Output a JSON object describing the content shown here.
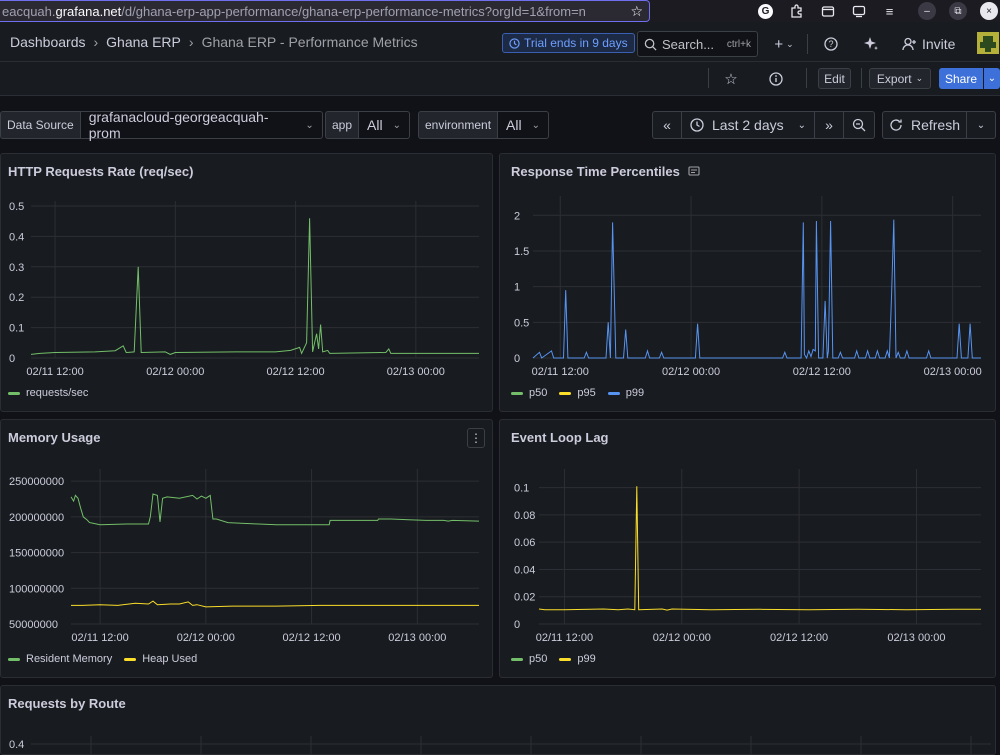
{
  "browser": {
    "url_prefix": "eacquah.",
    "url_domain": "grafana.net",
    "url_rest": "/d/ghana-erp-app-performance/ghana-erp-performance-metrics?orgId=1&from=n",
    "window_controls": [
      "–",
      "⧉",
      "×"
    ]
  },
  "topnav": {
    "breadcrumbs": [
      "Dashboards",
      "Ghana ERP",
      "Ghana ERP - Performance Metrics"
    ],
    "trial": "Trial ends in 9 days",
    "search_placeholder": "Search...",
    "search_shortcut": "ctrl+k",
    "invite": "Invite"
  },
  "toolbar": {
    "edit": "Edit",
    "export": "Export",
    "share": "Share"
  },
  "variables": [
    {
      "label": "Data Source",
      "value": "grafanacloud-georgeacquah-prom"
    },
    {
      "label": "app",
      "value": "All"
    },
    {
      "label": "environment",
      "value": "All"
    }
  ],
  "time": {
    "range": "Last 2 days",
    "refresh": "Refresh"
  },
  "colors": {
    "green": "#73bf69",
    "yellow": "#fade2a",
    "blue": "#5794f2"
  },
  "panels": {
    "http": {
      "title": "HTTP Requests Rate (req/sec)"
    },
    "resp": {
      "title": "Response Time Percentiles"
    },
    "mem": {
      "title": "Memory Usage"
    },
    "lag": {
      "title": "Event Loop Lag"
    },
    "routes": {
      "title": "Requests by Route"
    }
  },
  "chart_data": [
    {
      "type": "line",
      "title": "HTTP Requests Rate (req/sec)",
      "x_ticks": [
        "02/11 12:00",
        "02/12 00:00",
        "02/12 12:00",
        "02/13 00:00"
      ],
      "y_ticks": [
        "0",
        "0.1",
        "0.2",
        "0.3",
        "0.4",
        "0.5"
      ],
      "ylim": [
        0,
        0.5
      ],
      "xlim": [
        -2.4,
        42.3
      ],
      "series": [
        {
          "name": "requests/sec",
          "color": "#73bf69",
          "points": [
            [
              -2.4,
              0.012
            ],
            [
              -1.5,
              0.015
            ],
            [
              0,
              0.018
            ],
            [
              4,
              0.02
            ],
            [
              6,
              0.024
            ],
            [
              6.8,
              0.04
            ],
            [
              7.1,
              0.018
            ],
            [
              7.9,
              0.02
            ],
            [
              8.3,
              0.3
            ],
            [
              8.6,
              0.018
            ],
            [
              11,
              0.02
            ],
            [
              11.5,
              0.012
            ],
            [
              12,
              0.018
            ],
            [
              18,
              0.02
            ],
            [
              22,
              0.02
            ],
            [
              23.5,
              0.025
            ],
            [
              24.4,
              0.035
            ],
            [
              24.6,
              0.015
            ],
            [
              25.1,
              0.05
            ],
            [
              25.4,
              0.46
            ],
            [
              25.7,
              0.02
            ],
            [
              26.1,
              0.08
            ],
            [
              26.3,
              0.03
            ],
            [
              26.5,
              0.11
            ],
            [
              26.7,
              0.02
            ],
            [
              27.2,
              0.025
            ],
            [
              27.4,
              0.015
            ],
            [
              33,
              0.018
            ],
            [
              33.3,
              0.03
            ],
            [
              33.5,
              0.015
            ],
            [
              42.3,
              0.015
            ]
          ]
        }
      ]
    },
    {
      "type": "line",
      "title": "Response Time Percentiles",
      "x_ticks": [
        "02/11 12:00",
        "02/12 00:00",
        "02/12 12:00",
        "02/13 00:00"
      ],
      "y_ticks": [
        "0",
        "0.5",
        "1",
        "1.5",
        "2"
      ],
      "ylim": [
        0,
        2.2
      ],
      "xlim": [
        -2.5,
        38.6
      ],
      "series": [
        {
          "name": "p50",
          "color": "#73bf69",
          "points": []
        },
        {
          "name": "p95",
          "color": "#fade2a",
          "points": []
        },
        {
          "name": "p99",
          "color": "#5794f2",
          "points": [
            [
              -2.5,
              0
            ],
            [
              -1.9,
              0.08
            ],
            [
              -1.7,
              0
            ],
            [
              -0.8,
              0.1
            ],
            [
              -0.6,
              0
            ],
            [
              0.3,
              0
            ],
            [
              0.5,
              0.95
            ],
            [
              0.7,
              0
            ],
            [
              2.2,
              0
            ],
            [
              2.4,
              0.08
            ],
            [
              2.6,
              0
            ],
            [
              4.2,
              0
            ],
            [
              4.4,
              0.5
            ],
            [
              4.6,
              0
            ],
            [
              4.8,
              1.9
            ],
            [
              5.1,
              0
            ],
            [
              5.8,
              0
            ],
            [
              6,
              0.4
            ],
            [
              6.2,
              0
            ],
            [
              7.8,
              0
            ],
            [
              8,
              0.1
            ],
            [
              8.2,
              0
            ],
            [
              9.1,
              0
            ],
            [
              9.3,
              0.08
            ],
            [
              9.5,
              0
            ],
            [
              12.4,
              0
            ],
            [
              12.6,
              0.48
            ],
            [
              12.8,
              0
            ],
            [
              20.4,
              0
            ],
            [
              20.6,
              0.08
            ],
            [
              20.8,
              0
            ],
            [
              22.1,
              0
            ],
            [
              22.3,
              1.9
            ],
            [
              22.4,
              0.05
            ],
            [
              22.6,
              0
            ],
            [
              22.8,
              0.1
            ],
            [
              23,
              0.02
            ],
            [
              23.2,
              0.12
            ],
            [
              23.4,
              0.1
            ],
            [
              23.5,
              1.92
            ],
            [
              23.7,
              0
            ],
            [
              24.1,
              0
            ],
            [
              24.3,
              0.8
            ],
            [
              24.5,
              0
            ],
            [
              24.6,
              0.1
            ],
            [
              24.8,
              1.92
            ],
            [
              25,
              0
            ],
            [
              25.5,
              0
            ],
            [
              25.7,
              0.08
            ],
            [
              25.9,
              0
            ],
            [
              27,
              0
            ],
            [
              27.2,
              0.1
            ],
            [
              27.4,
              0
            ],
            [
              28,
              0
            ],
            [
              28.2,
              0.1
            ],
            [
              28.4,
              0
            ],
            [
              28.9,
              0
            ],
            [
              29.1,
              0.1
            ],
            [
              29.3,
              0
            ],
            [
              29.8,
              0
            ],
            [
              30,
              0.1
            ],
            [
              30.2,
              0
            ],
            [
              30.4,
              0.9
            ],
            [
              30.6,
              1.94
            ],
            [
              30.8,
              0
            ],
            [
              31,
              0.08
            ],
            [
              31.2,
              0
            ],
            [
              31.6,
              0
            ],
            [
              31.8,
              0.1
            ],
            [
              32,
              0
            ],
            [
              33.6,
              0
            ],
            [
              33.8,
              0.1
            ],
            [
              34,
              0
            ],
            [
              36.4,
              0
            ],
            [
              36.6,
              0.48
            ],
            [
              36.8,
              0
            ],
            [
              37.4,
              0
            ],
            [
              37.6,
              0.48
            ],
            [
              37.8,
              0
            ],
            [
              38.6,
              0
            ]
          ]
        }
      ]
    },
    {
      "type": "line",
      "title": "Memory Usage",
      "x_ticks": [
        "02/11 12:00",
        "02/12 00:00",
        "02/12 12:00",
        "02/13 00:00"
      ],
      "y_ticks": [
        "50000000",
        "100000000",
        "150000000",
        "200000000",
        "250000000"
      ],
      "ylim": [
        50000000,
        260000000
      ],
      "xlim": [
        -3.3,
        43
      ],
      "series": [
        {
          "name": "Resident Memory",
          "color": "#73bf69",
          "points": [
            [
              -3.3,
              228000000
            ],
            [
              -3,
              222000000
            ],
            [
              -2.8,
              230000000
            ],
            [
              -2.5,
              226000000
            ],
            [
              -2.2,
              212000000
            ],
            [
              -1.9,
              200000000
            ],
            [
              -1.5,
              196000000
            ],
            [
              -1.2,
              192000000
            ],
            [
              -0.8,
              191000000
            ],
            [
              0,
              189000000
            ],
            [
              3,
              190000000
            ],
            [
              5.5,
              190000000
            ],
            [
              5.7,
              200000000
            ],
            [
              6,
              232000000
            ],
            [
              6.5,
              230000000
            ],
            [
              6.8,
              193000000
            ],
            [
              7.1,
              226000000
            ],
            [
              7.6,
              228000000
            ],
            [
              9,
              226000000
            ],
            [
              10.5,
              230000000
            ],
            [
              11,
              225000000
            ],
            [
              11.5,
              229000000
            ],
            [
              12,
              226000000
            ],
            [
              12.5,
              230000000
            ],
            [
              12.8,
              197000000
            ],
            [
              13.2,
              197000000
            ],
            [
              14.5,
              192000000
            ],
            [
              16,
              191000000
            ],
            [
              18,
              190000000
            ],
            [
              20,
              189000000
            ],
            [
              22,
              189000000
            ],
            [
              24,
              189000000
            ],
            [
              26,
              189000000
            ],
            [
              26.1,
              195000000
            ],
            [
              29,
              195000000
            ],
            [
              31.5,
              195000000
            ],
            [
              31.6,
              197000000
            ],
            [
              33,
              197000000
            ],
            [
              35,
              196000000
            ],
            [
              37,
              195000000
            ],
            [
              39,
              195000000
            ],
            [
              39.5,
              194000000
            ],
            [
              40,
              195000000
            ],
            [
              43,
              194000000
            ]
          ]
        },
        {
          "name": "Heap Used",
          "color": "#fade2a",
          "points": [
            [
              -3.3,
              76000000
            ],
            [
              -2,
              76000000
            ],
            [
              0,
              77000000
            ],
            [
              2,
              76000000
            ],
            [
              4,
              79000000
            ],
            [
              5.5,
              78000000
            ],
            [
              6,
              82000000
            ],
            [
              6.5,
              77000000
            ],
            [
              8,
              78000000
            ],
            [
              9,
              78000000
            ],
            [
              10,
              81000000
            ],
            [
              10.5,
              76000000
            ],
            [
              11,
              77000000
            ],
            [
              12,
              74000000
            ],
            [
              15,
              75000000
            ],
            [
              20,
              75000000
            ],
            [
              25,
              76000000
            ],
            [
              30,
              76000000
            ],
            [
              35,
              76000000
            ],
            [
              40,
              76000000
            ],
            [
              43,
              76000000
            ]
          ]
        }
      ]
    },
    {
      "type": "line",
      "title": "Event Loop Lag",
      "x_ticks": [
        "02/11 12:00",
        "02/12 00:00",
        "02/12 12:00",
        "02/13 00:00"
      ],
      "y_ticks": [
        "0",
        "0.02",
        "0.04",
        "0.06",
        "0.08",
        "0.1"
      ],
      "ylim": [
        0,
        0.11
      ],
      "xlim": [
        -2.6,
        42.6
      ],
      "series": [
        {
          "name": "p50",
          "color": "#73bf69",
          "points": []
        },
        {
          "name": "p99",
          "color": "#fade2a",
          "points": [
            [
              -2.6,
              0.011
            ],
            [
              -2,
              0.0105
            ],
            [
              0,
              0.0105
            ],
            [
              4,
              0.011
            ],
            [
              5.5,
              0.0105
            ],
            [
              6.5,
              0.011
            ],
            [
              7.2,
              0.0105
            ],
            [
              7.4,
              0.101
            ],
            [
              7.6,
              0.0105
            ],
            [
              10,
              0.011
            ],
            [
              10.5,
              0.0102
            ],
            [
              11,
              0.011
            ],
            [
              15,
              0.0105
            ],
            [
              20,
              0.0108
            ],
            [
              25,
              0.0105
            ],
            [
              30,
              0.0108
            ],
            [
              35,
              0.0105
            ],
            [
              40,
              0.0108
            ],
            [
              42.6,
              0.0108
            ]
          ]
        }
      ]
    },
    {
      "type": "line",
      "title": "Requests by Route",
      "y_ticks": [
        "0.4"
      ]
    }
  ]
}
